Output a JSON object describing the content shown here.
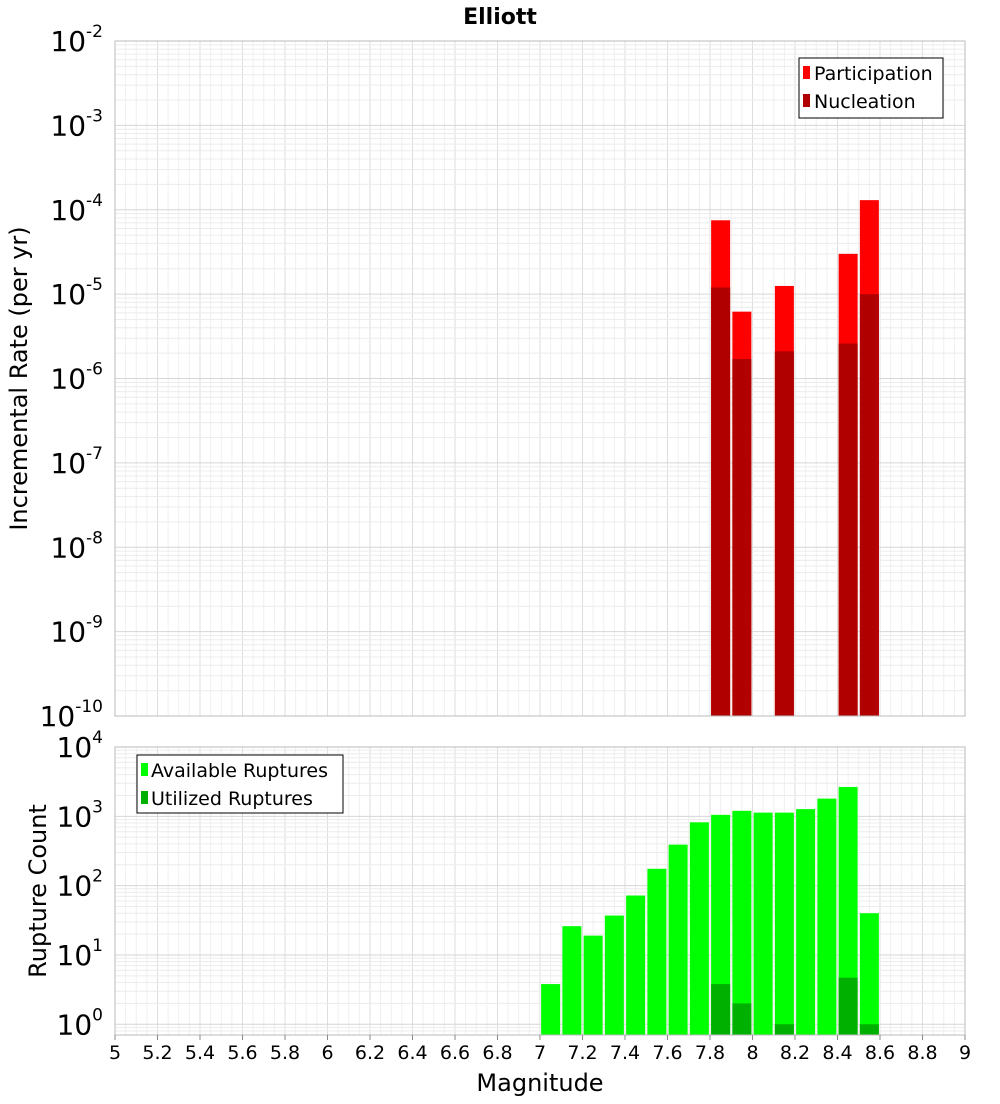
{
  "chart_data": [
    {
      "id": "top",
      "type": "bar",
      "scale": "log",
      "title": "Elliott",
      "xlabel": "Magnitude",
      "ylabel": "Incremental Rate (per yr)",
      "xlim": [
        5,
        9
      ],
      "ylim": [
        1e-10,
        0.01
      ],
      "ytick_exponents": [
        "-10",
        "-9",
        "-8",
        "-7",
        "-6",
        "-5",
        "-4",
        "-3",
        "-2"
      ],
      "ytick_base": "10",
      "legend": {
        "position": "top-right",
        "entries": [
          "Participation",
          "Nucleation"
        ]
      },
      "colors": {
        "Participation": "#ff0000",
        "Nucleation": "#b00000"
      },
      "series": [
        {
          "name": "Participation",
          "x": [
            7.85,
            7.95,
            8.15,
            8.45,
            8.55
          ],
          "values": [
            7.5e-05,
            6.2e-06,
            1.25e-05,
            3e-05,
            0.00013
          ]
        },
        {
          "name": "Nucleation",
          "x": [
            7.85,
            7.95,
            8.15,
            8.45,
            8.55
          ],
          "values": [
            1.2e-05,
            1.7e-06,
            2.1e-06,
            2.6e-06,
            1e-05
          ]
        }
      ]
    },
    {
      "id": "bottom",
      "type": "bar",
      "scale": "log",
      "xlabel": "Magnitude",
      "ylabel": "Rupture Count",
      "xlim": [
        5,
        9
      ],
      "ylim": [
        0.7,
        10000
      ],
      "ytick_exponents": [
        "0",
        "1",
        "2",
        "3",
        "4"
      ],
      "ytick_base": "10",
      "xticks": [
        "5",
        "5.2",
        "5.4",
        "5.6",
        "5.8",
        "6",
        "6.2",
        "6.4",
        "6.6",
        "6.8",
        "7",
        "7.2",
        "7.4",
        "7.6",
        "7.8",
        "8",
        "8.2",
        "8.4",
        "8.6",
        "8.8",
        "9"
      ],
      "legend": {
        "position": "top-left",
        "entries": [
          "Available Ruptures",
          "Utilized Ruptures"
        ]
      },
      "colors": {
        "Available Ruptures": "#00ff00",
        "Utilized Ruptures": "#00b000"
      },
      "series": [
        {
          "name": "Available Ruptures",
          "x": [
            7.05,
            7.15,
            7.25,
            7.35,
            7.45,
            7.55,
            7.65,
            7.75,
            7.85,
            7.95,
            8.05,
            8.15,
            8.25,
            8.35,
            8.45,
            8.55
          ],
          "values": [
            3.8,
            26,
            19,
            37,
            72,
            175,
            390,
            820,
            1050,
            1200,
            1130,
            1130,
            1270,
            1800,
            2650,
            40
          ]
        },
        {
          "name": "Utilized Ruptures",
          "x": [
            7.85,
            7.95,
            8.15,
            8.45,
            8.55
          ],
          "values": [
            3.8,
            2.0,
            1.0,
            4.7,
            1.0
          ]
        }
      ]
    }
  ]
}
